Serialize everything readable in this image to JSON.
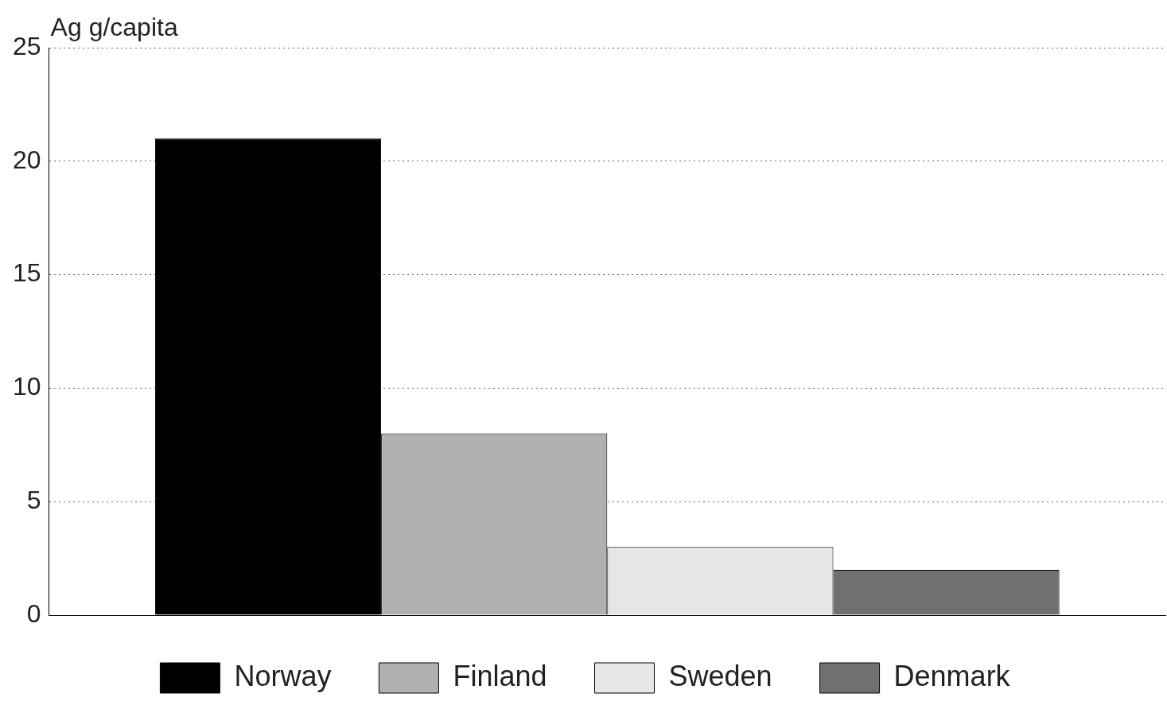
{
  "chart_data": {
    "type": "bar",
    "ylabel": "Ag g/capita",
    "categories": [
      null
    ],
    "series": [
      {
        "name": "Norway",
        "color": "#000000",
        "values": [
          21
        ]
      },
      {
        "name": "Finland",
        "color": "#b0b0b0",
        "values": [
          8
        ]
      },
      {
        "name": "Sweden",
        "color": "#e6e6e6",
        "values": [
          3
        ]
      },
      {
        "name": "Denmark",
        "color": "#707070",
        "values": [
          2
        ]
      }
    ],
    "ylim": [
      0,
      25
    ],
    "yticks": [
      0,
      5,
      10,
      15,
      20,
      25
    ],
    "grid": "y",
    "legend": "bottom",
    "tick_labels": "y"
  }
}
